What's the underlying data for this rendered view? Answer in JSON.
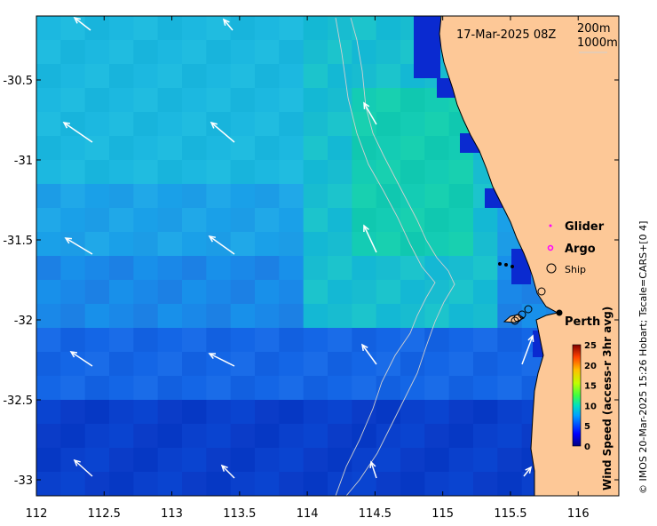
{
  "map": {
    "timestamp": "17-Mar-2025 08Z",
    "isobath_labels": [
      "200m",
      "1000m"
    ],
    "x_ticks": [
      "112",
      "112.5",
      "113",
      "113.5",
      "114",
      "114.5",
      "115",
      "115.5",
      "116"
    ],
    "y_ticks": [
      "-30.5",
      "-31",
      "-31.5",
      "-32",
      "-32.5",
      "-33"
    ],
    "lon_range": [
      112,
      116.3
    ],
    "lat_range": [
      -33.1,
      -30.1
    ],
    "legend": {
      "glider": "Glider",
      "argo": "Argo",
      "ship": "Ship",
      "glider_color": "#ff00ff",
      "argo_color": "#ff00ff"
    },
    "place_label": "Perth",
    "colorbar": {
      "title": "Wind Speed (access-r 3hr avg)",
      "ticks": [
        "0",
        "5",
        "10",
        "15",
        "20",
        "25"
      ],
      "range": [
        0,
        25
      ]
    },
    "credit": "© IMOS 20-Mar-2025 15:26 Hobart; Tscale=CARS+[0 4]",
    "land_color": "#fdc897"
  }
}
